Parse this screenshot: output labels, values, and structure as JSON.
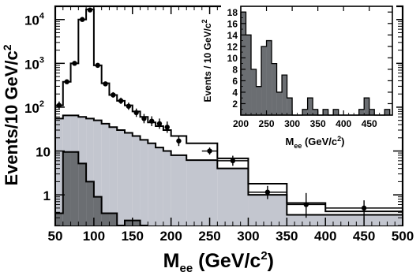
{
  "chart_data": [
    {
      "type": "histogram",
      "xlabel": "M",
      "xlabel_sub": "ee",
      "xlabel_unit": " (GeV/c",
      "xlabel_unit_sup": "2",
      "xlabel_unit_close": ")",
      "ylabel": "Events/10 GeV/c",
      "ylabel_sup": "2",
      "xlim": [
        50,
        500
      ],
      "ylim": [
        0.2,
        20000
      ],
      "yscale": "log",
      "xticks": [
        50,
        100,
        150,
        200,
        250,
        300,
        350,
        400,
        450,
        500
      ],
      "yticks": [
        {
          "value": 1,
          "label": "1"
        },
        {
          "value": 10,
          "label": "10"
        },
        {
          "value": 100,
          "label": "10",
          "sup": "2"
        },
        {
          "value": 1000,
          "label": "10",
          "sup": "3"
        },
        {
          "value": 10000,
          "label": "10",
          "sup": "4"
        }
      ],
      "series": [
        {
          "role": "total_expectation",
          "style": "open-step",
          "color": "#000000",
          "edges": [
            50,
            60,
            70,
            80,
            90,
            100,
            110,
            120,
            130,
            140,
            150,
            160,
            170,
            180,
            190,
            200,
            220,
            260,
            300,
            350,
            400,
            500
          ],
          "values": [
            110,
            380,
            1000,
            10000,
            17000,
            900,
            350,
            190,
            140,
            110,
            80,
            60,
            45,
            37,
            30,
            22,
            15,
            6.8,
            1.8,
            0.65,
            0.42
          ]
        },
        {
          "role": "background",
          "style": "filled-step",
          "color": "#c3c6cf",
          "edges": [
            50,
            60,
            70,
            80,
            90,
            100,
            110,
            120,
            130,
            140,
            150,
            160,
            170,
            180,
            190,
            200,
            220,
            260,
            300,
            350,
            500
          ],
          "values": [
            55,
            65,
            65,
            60,
            55,
            50,
            42,
            35,
            30,
            26,
            22,
            18,
            15,
            12,
            10,
            8,
            6.2,
            4.0,
            1.0,
            0.35
          ]
        },
        {
          "role": "fake_background",
          "style": "filled-step",
          "color": "#6b6e72",
          "edges": [
            50,
            60,
            70,
            80,
            90,
            100,
            110,
            120,
            130,
            140,
            150,
            160,
            170
          ],
          "values": [
            0.38,
            9.5,
            9.5,
            5.2,
            2.0,
            0.9,
            0.38,
            0.38,
            0.2,
            0.26,
            0.26,
            0.2
          ]
        },
        {
          "role": "data",
          "style": "points-with-errors",
          "color": "#000000",
          "points": [
            {
              "x": 55,
              "y": 110,
              "lo": 90,
              "hi": 135
            },
            {
              "x": 65,
              "y": 380,
              "lo": 345,
              "hi": 420
            },
            {
              "x": 75,
              "y": 1000,
              "lo": 940,
              "hi": 1060
            },
            {
              "x": 85,
              "y": 10000,
              "lo": 9800,
              "hi": 10200
            },
            {
              "x": 95,
              "y": 16500,
              "lo": 16200,
              "hi": 16800
            },
            {
              "x": 105,
              "y": 900,
              "lo": 850,
              "hi": 960
            },
            {
              "x": 115,
              "y": 340,
              "lo": 305,
              "hi": 380
            },
            {
              "x": 125,
              "y": 190,
              "lo": 165,
              "hi": 220
            },
            {
              "x": 135,
              "y": 140,
              "lo": 118,
              "hi": 165
            },
            {
              "x": 145,
              "y": 105,
              "lo": 87,
              "hi": 127
            },
            {
              "x": 155,
              "y": 75,
              "lo": 60,
              "hi": 93
            },
            {
              "x": 165,
              "y": 55,
              "lo": 43,
              "hi": 70
            },
            {
              "x": 175,
              "y": 48,
              "lo": 37,
              "hi": 62
            },
            {
              "x": 185,
              "y": 42,
              "lo": 32,
              "hi": 55
            },
            {
              "x": 195,
              "y": 35,
              "lo": 26,
              "hi": 47
            },
            {
              "x": 210,
              "y": 17,
              "lo": 13,
              "hi": 22
            },
            {
              "x": 250,
              "y": 10,
              "xlo": 240,
              "xhi": 260,
              "lo": 8.3,
              "hi": 12
            },
            {
              "x": 280,
              "y": 6.0,
              "xlo": 260,
              "xhi": 300,
              "lo": 4.6,
              "hi": 7.8
            },
            {
              "x": 325,
              "y": 1.15,
              "xlo": 300,
              "xhi": 350,
              "lo": 0.8,
              "hi": 1.6
            },
            {
              "x": 375,
              "y": 0.6,
              "xlo": 350,
              "xhi": 400,
              "lo": 0.3,
              "hi": 1.1
            },
            {
              "x": 450,
              "y": 0.5,
              "xlo": 400,
              "xhi": 500,
              "lo": 0.3,
              "hi": 0.75
            }
          ]
        }
      ]
    },
    {
      "type": "histogram",
      "role": "inset",
      "xlabel": "M",
      "xlabel_sub": "ee",
      "xlabel_unit": " (GeV/c",
      "xlabel_unit_sup": "2",
      "xlabel_unit_close": ")",
      "ylabel": "Events / 10 GeV/c",
      "ylabel_sup": "2",
      "xlim": [
        200,
        495
      ],
      "ylim": [
        0,
        19
      ],
      "xticks": [
        200,
        250,
        300,
        350,
        400,
        450
      ],
      "yticks": [
        2,
        4,
        6,
        8,
        10,
        12,
        14,
        16,
        18
      ],
      "series": [
        {
          "style": "filled-step",
          "color": "#6b6e72",
          "edges": [
            200,
            210,
            220,
            230,
            240,
            250,
            260,
            270,
            280,
            290,
            300,
            310,
            320,
            330,
            340,
            350,
            360,
            370,
            380,
            390,
            400,
            410,
            420,
            430,
            440,
            450,
            460,
            470,
            480,
            490
          ],
          "values": [
            18,
            14,
            8,
            5,
            12,
            13,
            9,
            4,
            7,
            3,
            0,
            0,
            1,
            3,
            1,
            0,
            1,
            0,
            1,
            0,
            0,
            0,
            0,
            1,
            3,
            1,
            0,
            0,
            1
          ]
        }
      ]
    }
  ]
}
